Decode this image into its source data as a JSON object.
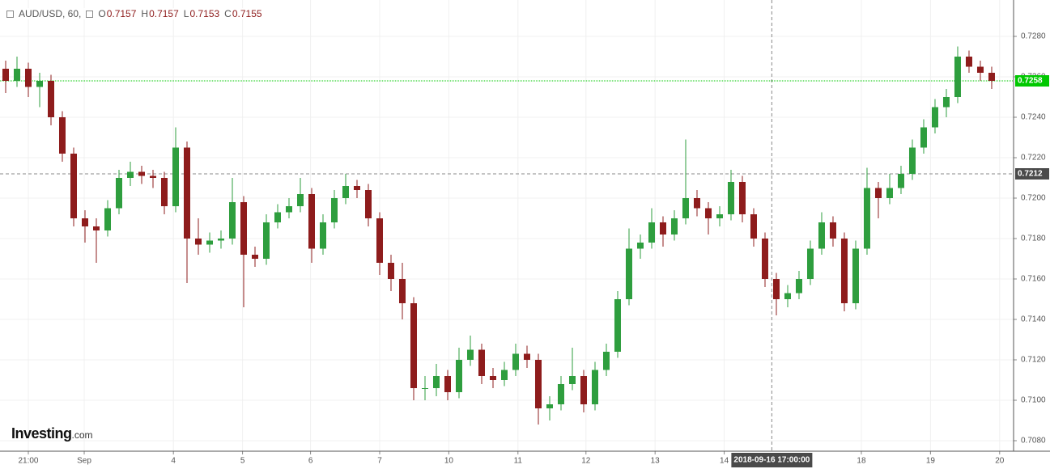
{
  "chart_data": {
    "type": "candlestick",
    "symbol": "AUD/USD, 60,",
    "header_ohlc": {
      "labels": [
        "O",
        "H",
        "L",
        "C"
      ],
      "values": [
        0.7157,
        0.7157,
        0.7153,
        0.7155
      ]
    },
    "watermark": {
      "name": "Investing",
      "suffix": ".com"
    },
    "up_color": "#2e9e3e",
    "down_color": "#8e1c1c",
    "grid": true,
    "xlim": [
      -0.5,
      88.93
    ],
    "ylim": [
      0.70748,
      0.7298
    ],
    "xticks": [
      {
        "value": 2,
        "label": "21:00"
      },
      {
        "value": 6.93,
        "label": "Sep"
      },
      {
        "value": 14.8,
        "label": "4"
      },
      {
        "value": 20.9,
        "label": "5"
      },
      {
        "value": 26.9,
        "label": "6"
      },
      {
        "value": 33,
        "label": "7"
      },
      {
        "value": 39.1,
        "label": "10"
      },
      {
        "value": 45.2,
        "label": "11"
      },
      {
        "value": 51.2,
        "label": "12"
      },
      {
        "value": 57.3,
        "label": "13"
      },
      {
        "value": 63.4,
        "label": "14"
      },
      {
        "value": 75.5,
        "label": "18"
      },
      {
        "value": 81.6,
        "label": "19"
      },
      {
        "value": 87.7,
        "label": "20"
      }
    ],
    "yticks": [
      {
        "value": 0.708,
        "label": "0.7080"
      },
      {
        "value": 0.71,
        "label": "0.7100"
      },
      {
        "value": 0.712,
        "label": "0.7120"
      },
      {
        "value": 0.714,
        "label": "0.7140"
      },
      {
        "value": 0.716,
        "label": "0.7160"
      },
      {
        "value": 0.718,
        "label": "0.7180"
      },
      {
        "value": 0.72,
        "label": "0.7200"
      },
      {
        "value": 0.722,
        "label": "0.7220"
      },
      {
        "value": 0.724,
        "label": "0.7240"
      },
      {
        "value": 0.726,
        "label": "0.7260"
      },
      {
        "value": 0.728,
        "label": "0.7280"
      }
    ],
    "last_price": {
      "value": 0.7258,
      "color": "#00c800"
    },
    "crosshair": {
      "x": {
        "value": 67.6,
        "label": "2018-09-16 17:00:00"
      },
      "y": 0.7212
    },
    "ohlc": [
      [
        0.7264,
        0.7268,
        0.7252,
        0.7258
      ],
      [
        0.7258,
        0.727,
        0.7255,
        0.7264
      ],
      [
        0.7264,
        0.7267,
        0.725,
        0.7255
      ],
      [
        0.7255,
        0.7262,
        0.7245,
        0.7258
      ],
      [
        0.7258,
        0.7261,
        0.7236,
        0.724
      ],
      [
        0.724,
        0.7243,
        0.7218,
        0.7222
      ],
      [
        0.7222,
        0.7225,
        0.7186,
        0.719
      ],
      [
        0.719,
        0.7194,
        0.7178,
        0.7186
      ],
      [
        0.7186,
        0.719,
        0.7168,
        0.7184
      ],
      [
        0.7184,
        0.7199,
        0.7181,
        0.7195
      ],
      [
        0.7195,
        0.7214,
        0.7192,
        0.721
      ],
      [
        0.721,
        0.7218,
        0.7206,
        0.7213
      ],
      [
        0.7213,
        0.7216,
        0.7207,
        0.7211
      ],
      [
        0.7211,
        0.7214,
        0.7205,
        0.721
      ],
      [
        0.721,
        0.7213,
        0.7192,
        0.7196
      ],
      [
        0.7196,
        0.7235,
        0.7193,
        0.7225
      ],
      [
        0.7225,
        0.7228,
        0.7158,
        0.718
      ],
      [
        0.718,
        0.719,
        0.7172,
        0.7177
      ],
      [
        0.7177,
        0.7183,
        0.7173,
        0.7179
      ],
      [
        0.7179,
        0.7184,
        0.7175,
        0.718
      ],
      [
        0.718,
        0.721,
        0.7177,
        0.7198
      ],
      [
        0.7198,
        0.7201,
        0.7146,
        0.7172
      ],
      [
        0.7172,
        0.7176,
        0.7166,
        0.717
      ],
      [
        0.717,
        0.7192,
        0.7167,
        0.7188
      ],
      [
        0.7188,
        0.7197,
        0.7185,
        0.7193
      ],
      [
        0.7193,
        0.72,
        0.719,
        0.7196
      ],
      [
        0.7196,
        0.721,
        0.7193,
        0.7202
      ],
      [
        0.7202,
        0.7205,
        0.7168,
        0.7175
      ],
      [
        0.7175,
        0.7192,
        0.7172,
        0.7188
      ],
      [
        0.7188,
        0.7204,
        0.7185,
        0.72
      ],
      [
        0.72,
        0.7212,
        0.7197,
        0.7206
      ],
      [
        0.7206,
        0.7209,
        0.72,
        0.7204
      ],
      [
        0.7204,
        0.7207,
        0.7186,
        0.719
      ],
      [
        0.719,
        0.7193,
        0.7162,
        0.7168
      ],
      [
        0.7168,
        0.7172,
        0.7154,
        0.716
      ],
      [
        0.716,
        0.7168,
        0.714,
        0.7148
      ],
      [
        0.7148,
        0.7151,
        0.71,
        0.7106
      ],
      [
        0.7106,
        0.7112,
        0.71,
        0.7106
      ],
      [
        0.7106,
        0.7118,
        0.7102,
        0.7112
      ],
      [
        0.7112,
        0.7115,
        0.71,
        0.7104
      ],
      [
        0.7104,
        0.7126,
        0.7101,
        0.712
      ],
      [
        0.712,
        0.7132,
        0.7117,
        0.7125
      ],
      [
        0.7125,
        0.7128,
        0.7108,
        0.7112
      ],
      [
        0.7112,
        0.7116,
        0.7106,
        0.711
      ],
      [
        0.711,
        0.7119,
        0.7107,
        0.7115
      ],
      [
        0.7115,
        0.7128,
        0.7112,
        0.7123
      ],
      [
        0.7123,
        0.7127,
        0.7116,
        0.712
      ],
      [
        0.712,
        0.7123,
        0.7088,
        0.7096
      ],
      [
        0.7096,
        0.7102,
        0.709,
        0.7098
      ],
      [
        0.7098,
        0.7112,
        0.7095,
        0.7108
      ],
      [
        0.7108,
        0.7126,
        0.7105,
        0.7112
      ],
      [
        0.7112,
        0.7115,
        0.7094,
        0.7098
      ],
      [
        0.7098,
        0.7119,
        0.7095,
        0.7115
      ],
      [
        0.7115,
        0.7128,
        0.7112,
        0.7124
      ],
      [
        0.7124,
        0.7154,
        0.7121,
        0.715
      ],
      [
        0.715,
        0.7185,
        0.7147,
        0.7175
      ],
      [
        0.7175,
        0.7182,
        0.717,
        0.7178
      ],
      [
        0.7178,
        0.7195,
        0.7175,
        0.7188
      ],
      [
        0.7188,
        0.7191,
        0.7176,
        0.7182
      ],
      [
        0.7182,
        0.7194,
        0.7179,
        0.719
      ],
      [
        0.719,
        0.7229,
        0.7187,
        0.72
      ],
      [
        0.72,
        0.7204,
        0.7191,
        0.7195
      ],
      [
        0.7195,
        0.7198,
        0.7182,
        0.719
      ],
      [
        0.719,
        0.7196,
        0.7186,
        0.7192
      ],
      [
        0.7192,
        0.7214,
        0.7189,
        0.7208
      ],
      [
        0.7208,
        0.7211,
        0.7188,
        0.7192
      ],
      [
        0.7192,
        0.7195,
        0.7176,
        0.718
      ],
      [
        0.718,
        0.7183,
        0.7156,
        0.716
      ],
      [
        0.716,
        0.7163,
        0.7142,
        0.715
      ],
      [
        0.715,
        0.7157,
        0.7146,
        0.7153
      ],
      [
        0.7153,
        0.7164,
        0.715,
        0.716
      ],
      [
        0.716,
        0.7179,
        0.7157,
        0.7175
      ],
      [
        0.7175,
        0.7193,
        0.7172,
        0.7188
      ],
      [
        0.7188,
        0.7191,
        0.7176,
        0.718
      ],
      [
        0.718,
        0.7183,
        0.7144,
        0.7148
      ],
      [
        0.7148,
        0.7179,
        0.7145,
        0.7175
      ],
      [
        0.7175,
        0.7215,
        0.7172,
        0.7205
      ],
      [
        0.7205,
        0.7208,
        0.719,
        0.72
      ],
      [
        0.72,
        0.7212,
        0.7197,
        0.7205
      ],
      [
        0.7205,
        0.7216,
        0.7202,
        0.7212
      ],
      [
        0.7212,
        0.7229,
        0.7209,
        0.7225
      ],
      [
        0.7225,
        0.7239,
        0.7222,
        0.7235
      ],
      [
        0.7235,
        0.7249,
        0.7232,
        0.7245
      ],
      [
        0.7245,
        0.7254,
        0.724,
        0.725
      ],
      [
        0.725,
        0.7275,
        0.7247,
        0.727
      ],
      [
        0.727,
        0.7273,
        0.7262,
        0.7265
      ],
      [
        0.7265,
        0.7268,
        0.7258,
        0.7262
      ],
      [
        0.7262,
        0.7265,
        0.7254,
        0.7258
      ]
    ]
  }
}
